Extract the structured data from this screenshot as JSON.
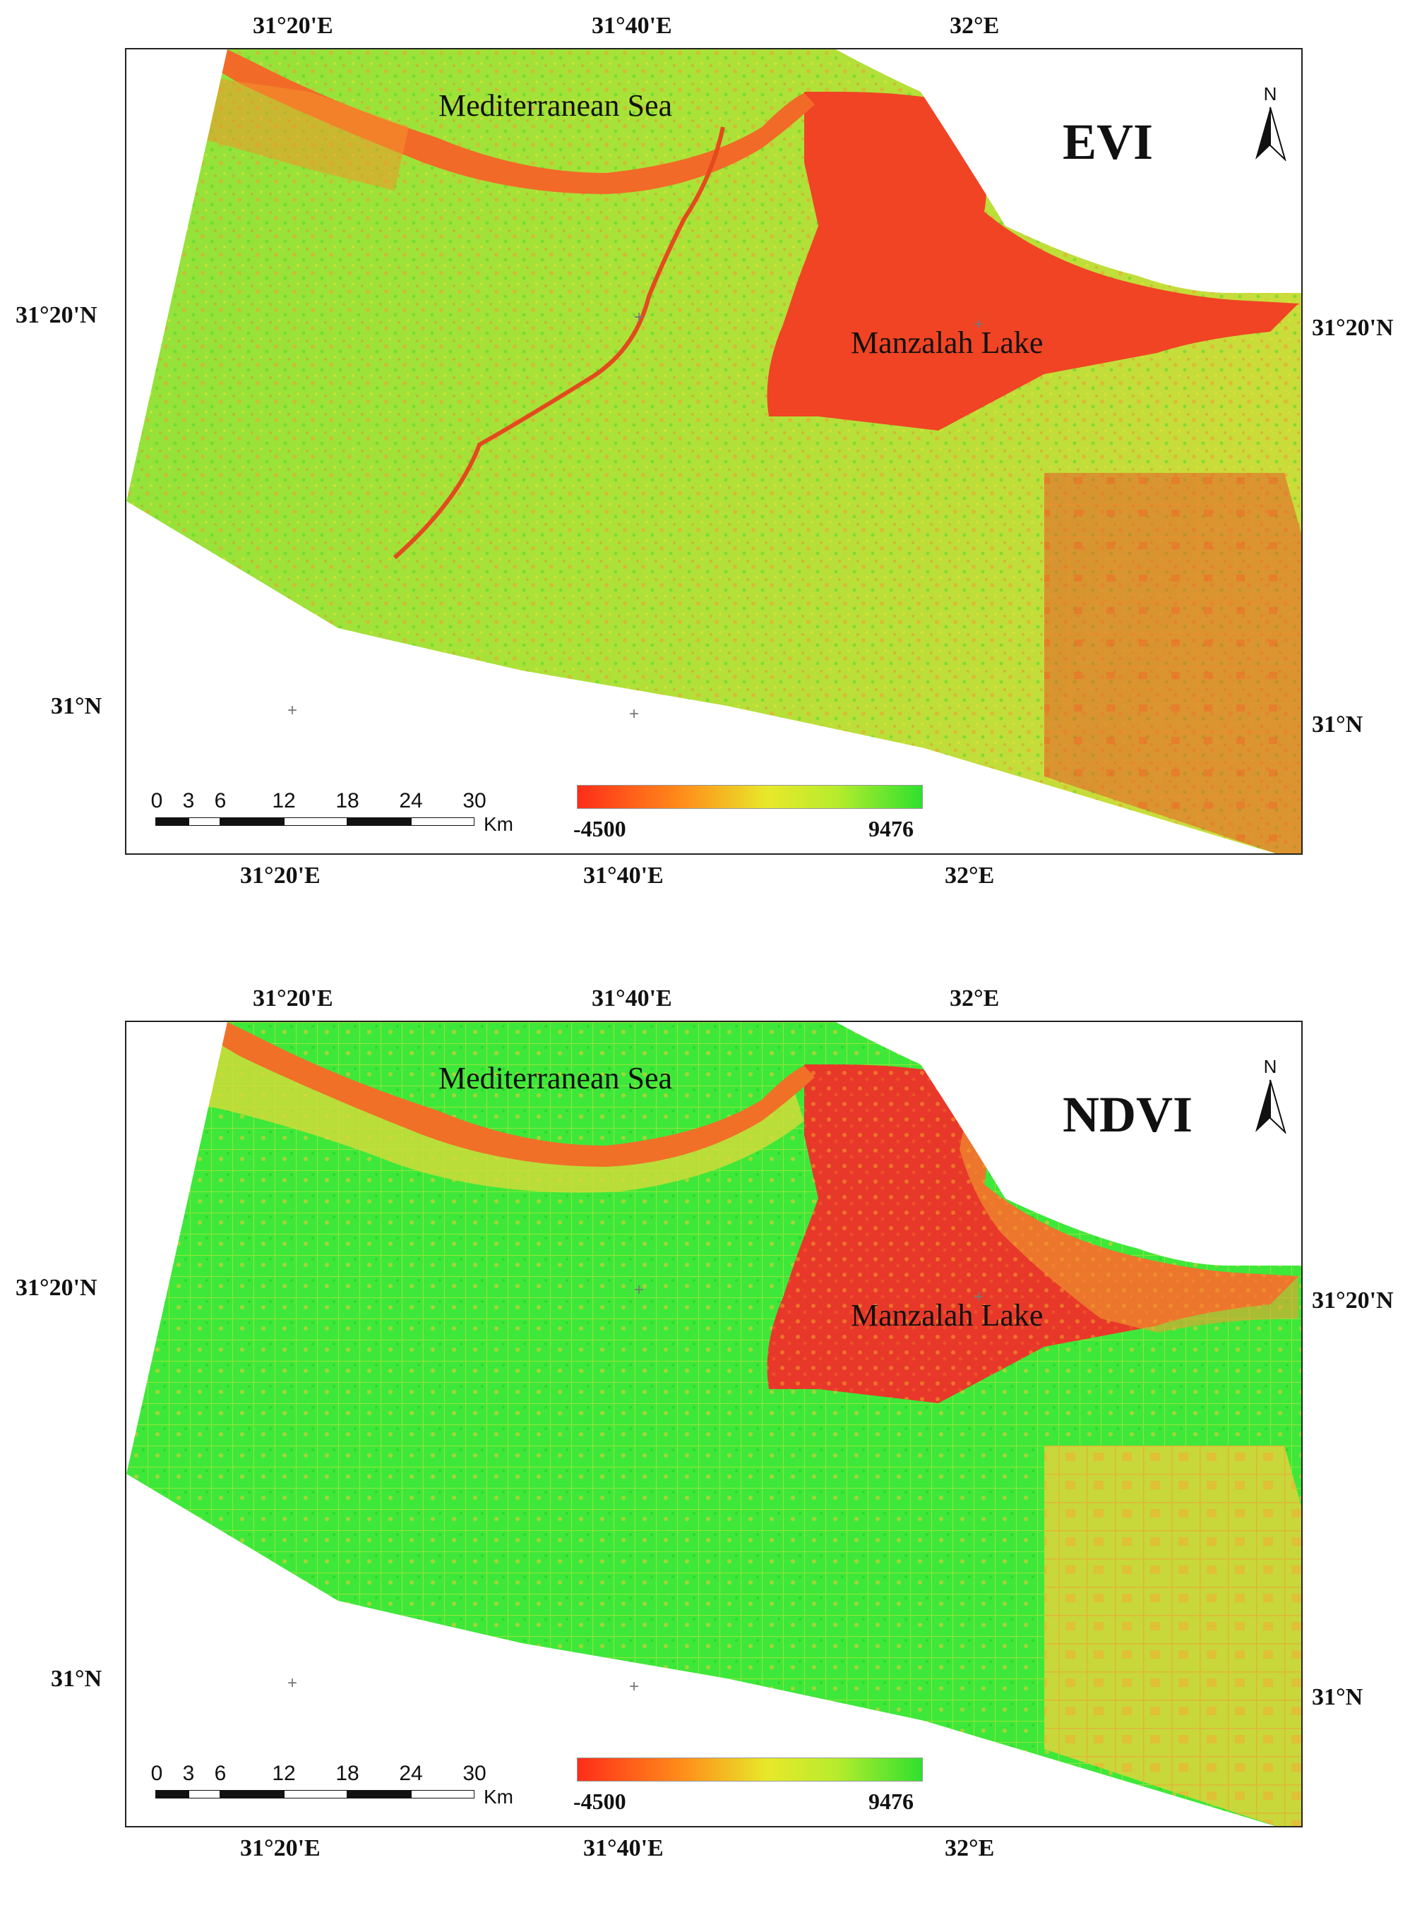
{
  "colors": {
    "low": "#ff2d1a",
    "mid_low": "#ff8c1a",
    "mid": "#e8e82a",
    "high": "#2fe02f",
    "frame": "#222222"
  },
  "panels": [
    {
      "index": "EVI",
      "top_longitudes": [
        "31°20'E",
        "31°40'E",
        "32°E"
      ],
      "bottom_longitudes": [
        "31°20'E",
        "31°40'E",
        "32°E"
      ],
      "left_latitudes": [
        "31°20'N",
        "31°N"
      ],
      "right_latitudes": [
        "31°20'N",
        "31°N"
      ],
      "sea_label": "Mediterranean Sea",
      "lake_label": "Manzalah Lake",
      "north_label": "N",
      "scale_ticks": [
        "0",
        "3",
        "6",
        "12",
        "18",
        "24",
        "30"
      ],
      "scale_unit": "Km",
      "legend_min": "-4500",
      "legend_max": "9476"
    },
    {
      "index": "NDVI",
      "top_longitudes": [
        "31°20'E",
        "31°40'E",
        "32°E"
      ],
      "bottom_longitudes": [
        "31°20'E",
        "31°40'E",
        "32°E"
      ],
      "left_latitudes": [
        "31°20'N",
        "31°N"
      ],
      "right_latitudes": [
        "31°20'N",
        "31°N"
      ],
      "sea_label": "Mediterranean Sea",
      "lake_label": "Manzalah Lake",
      "north_label": "N",
      "scale_ticks": [
        "0",
        "3",
        "6",
        "12",
        "18",
        "24",
        "30"
      ],
      "scale_unit": "Km",
      "legend_min": "-4500",
      "legend_max": "9476"
    }
  ]
}
